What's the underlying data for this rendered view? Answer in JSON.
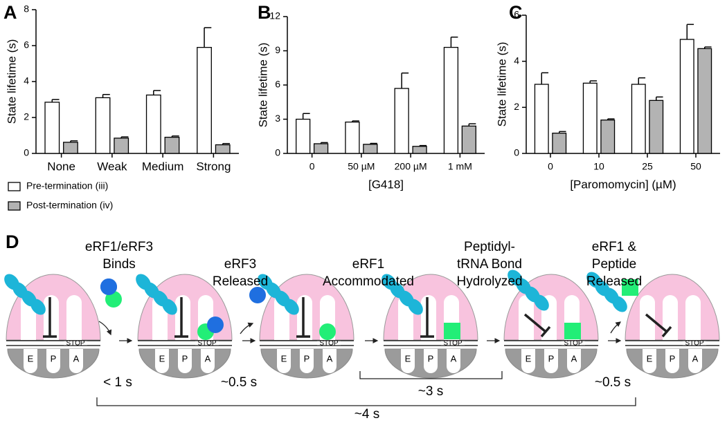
{
  "chart_data": [
    {
      "type": "bar",
      "panel": "A",
      "ylabel": "State lifetime (s)",
      "categories": [
        "None",
        "Weak",
        "Medium",
        "Strong"
      ],
      "series": [
        {
          "name": "Pre-termination (iii)",
          "color": "#ffffff",
          "values": [
            2.85,
            3.1,
            3.25,
            5.9
          ],
          "errors": [
            0.15,
            0.18,
            0.25,
            1.1
          ]
        },
        {
          "name": "Post-termination (iv)",
          "color": "#b3b3b3",
          "values": [
            0.62,
            0.85,
            0.9,
            0.48
          ],
          "errors": [
            0.08,
            0.07,
            0.07,
            0.07
          ]
        }
      ],
      "ylim": [
        0,
        8
      ],
      "yticks": [
        0,
        2,
        4,
        6,
        8
      ]
    },
    {
      "type": "bar",
      "panel": "B",
      "ylabel": "State lifetime (s)",
      "xlabel": "[G418]",
      "categories": [
        "0",
        "50 µM",
        "200 µM",
        "1 mM"
      ],
      "series": [
        {
          "color": "#ffffff",
          "values": [
            3.0,
            2.75,
            5.7,
            9.3
          ],
          "errors": [
            0.5,
            0.1,
            1.35,
            0.9
          ]
        },
        {
          "color": "#b3b3b3",
          "values": [
            0.85,
            0.8,
            0.62,
            2.4
          ],
          "errors": [
            0.1,
            0.08,
            0.07,
            0.2
          ]
        }
      ],
      "ylim": [
        0,
        12
      ],
      "yticks": [
        0,
        3,
        6,
        9,
        12
      ]
    },
    {
      "type": "bar",
      "panel": "C",
      "ylabel": "State lifetime (s)",
      "xlabel": "[Paromomycin] (µM)",
      "categories": [
        "0",
        "10",
        "25",
        "50"
      ],
      "series": [
        {
          "color": "#ffffff",
          "values": [
            3.0,
            3.05,
            3.0,
            4.95
          ],
          "errors": [
            0.5,
            0.1,
            0.28,
            0.65
          ]
        },
        {
          "color": "#b3b3b3",
          "values": [
            0.88,
            1.45,
            2.3,
            4.55
          ],
          "errors": [
            0.07,
            0.05,
            0.15,
            0.07
          ]
        }
      ],
      "ylim": [
        0,
        6
      ],
      "yticks": [
        0,
        2,
        4,
        6
      ]
    }
  ],
  "diagram": {
    "panel": "D",
    "steps": [
      [
        "eRF1/eRF3",
        "Binds"
      ],
      [
        "eRF3",
        "Released"
      ],
      [
        "eRF1",
        "Accommodated"
      ],
      [
        "Peptidyl-",
        "tRNA Bond",
        "Hydrolyzed"
      ],
      [
        "eRF1 &",
        "Peptide",
        "Released"
      ]
    ],
    "sites": [
      "E",
      "P",
      "A"
    ],
    "codon": "STOP",
    "timings": [
      "< 1 s",
      "~0.5 s",
      "~3 s",
      "~0.5 s",
      "~4 s"
    ]
  }
}
